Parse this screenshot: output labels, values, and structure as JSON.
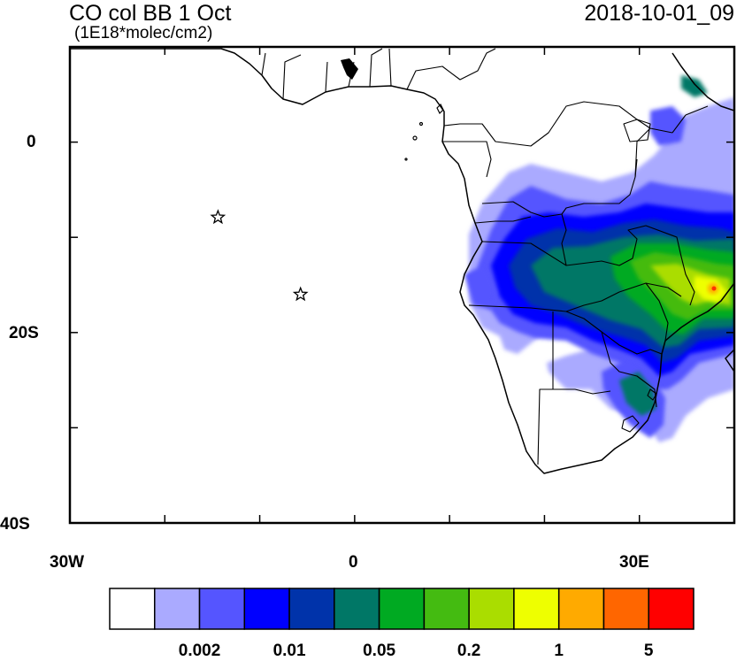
{
  "map": {
    "title": "CO col BB 1 Oct",
    "units": "(1E18*molec/cm2)",
    "timestamp": "2018-10-01_09",
    "lat_labels": [
      "0",
      "20S",
      "40S"
    ],
    "lon_labels": [
      "30W",
      "0",
      "30E"
    ],
    "extent": {
      "lon_min": -30,
      "lon_max": 40,
      "lat_min": -40,
      "lat_max": 10
    },
    "markers": [
      {
        "name": "star-marker",
        "lon": -14.4,
        "lat": -7.9
      },
      {
        "name": "star-marker",
        "lon": -5.7,
        "lat": -16.0
      }
    ]
  },
  "colorbar": {
    "colors": [
      "#ffffff",
      "#aaaaff",
      "#5555ff",
      "#0000ff",
      "#0033aa",
      "#007766",
      "#00aa22",
      "#44bb11",
      "#aadd00",
      "#eeff00",
      "#ffaa00",
      "#ff6600",
      "#ff0000"
    ],
    "labels": [
      {
        "text": "0.002",
        "boundary": 2
      },
      {
        "text": "0.01",
        "boundary": 4
      },
      {
        "text": "0.05",
        "boundary": 6
      },
      {
        "text": "0.2",
        "boundary": 8
      },
      {
        "text": "1",
        "boundary": 10
      },
      {
        "text": "5",
        "boundary": 12
      }
    ]
  }
}
